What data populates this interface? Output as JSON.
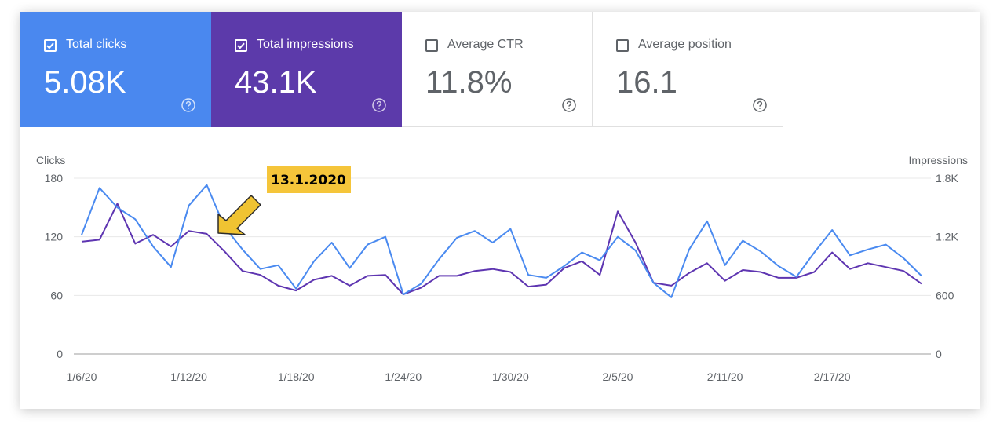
{
  "metrics": [
    {
      "label": "Total clicks",
      "value": "5.08K",
      "checked": true,
      "bg": "#4a88ef"
    },
    {
      "label": "Total impressions",
      "value": "43.1K",
      "checked": true,
      "bg": "#5c3aaa"
    },
    {
      "label": "Average CTR",
      "value": "11.8%",
      "checked": false,
      "bg": "#ffffff"
    },
    {
      "label": "Average position",
      "value": "16.1",
      "checked": false,
      "bg": "#ffffff"
    }
  ],
  "colors": {
    "clicks": "#4a8af0",
    "impressions": "#5e35b1",
    "annotation_bg": "#f5c53a",
    "arrow": "#f0c332",
    "grid": "#e8e8e8",
    "axis_text": "#5f6368"
  },
  "chart_data": {
    "type": "line",
    "x": [
      "1/6/20",
      "1/7/20",
      "1/8/20",
      "1/9/20",
      "1/10/20",
      "1/11/20",
      "1/12/20",
      "1/13/20",
      "1/14/20",
      "1/15/20",
      "1/16/20",
      "1/17/20",
      "1/18/20",
      "1/19/20",
      "1/20/20",
      "1/21/20",
      "1/22/20",
      "1/23/20",
      "1/24/20",
      "1/25/20",
      "1/26/20",
      "1/27/20",
      "1/28/20",
      "1/29/20",
      "1/30/20",
      "1/31/20",
      "2/1/20",
      "2/2/20",
      "2/3/20",
      "2/4/20",
      "2/5/20",
      "2/6/20",
      "2/7/20",
      "2/8/20",
      "2/9/20",
      "2/10/20",
      "2/11/20",
      "2/12/20",
      "2/13/20",
      "2/14/20",
      "2/15/20",
      "2/16/20",
      "2/17/20",
      "2/18/20",
      "2/19/20",
      "2/20/20",
      "2/21/20",
      "2/22/20"
    ],
    "x_tick_labels": [
      "1/6/20",
      "1/12/20",
      "1/18/20",
      "1/24/20",
      "1/30/20",
      "2/5/20",
      "2/11/20",
      "2/17/20"
    ],
    "series": [
      {
        "name": "Clicks",
        "axis": "left",
        "values": [
          122,
          170,
          150,
          138,
          110,
          89,
          152,
          173,
          130,
          107,
          87,
          91,
          67,
          95,
          114,
          88,
          112,
          120,
          61,
          72,
          97,
          119,
          126,
          114,
          128,
          81,
          78,
          90,
          104,
          96,
          120,
          106,
          73,
          58,
          107,
          136,
          91,
          116,
          105,
          90,
          79,
          104,
          127,
          101,
          107,
          112,
          98,
          80
        ]
      },
      {
        "name": "Impressions",
        "axis": "right",
        "values": [
          1150,
          1170,
          1540,
          1130,
          1220,
          1100,
          1260,
          1230,
          1050,
          850,
          810,
          700,
          650,
          760,
          800,
          700,
          800,
          810,
          610,
          680,
          800,
          800,
          850,
          870,
          840,
          690,
          710,
          880,
          950,
          810,
          1460,
          1140,
          730,
          700,
          830,
          930,
          750,
          860,
          840,
          780,
          780,
          840,
          1040,
          870,
          930,
          890,
          850,
          720
        ]
      }
    ],
    "yleft": {
      "label": "Clicks",
      "ticks": [
        0,
        60,
        120,
        180
      ],
      "ylim": [
        0,
        180
      ]
    },
    "yright": {
      "label": "Impressions",
      "ticks": [
        "0",
        "600",
        "1.2K",
        "1.8K"
      ],
      "ylim": [
        0,
        1800
      ]
    },
    "annotation": {
      "text": "13.1.2020",
      "x": "1/13/20"
    },
    "grid": true
  }
}
